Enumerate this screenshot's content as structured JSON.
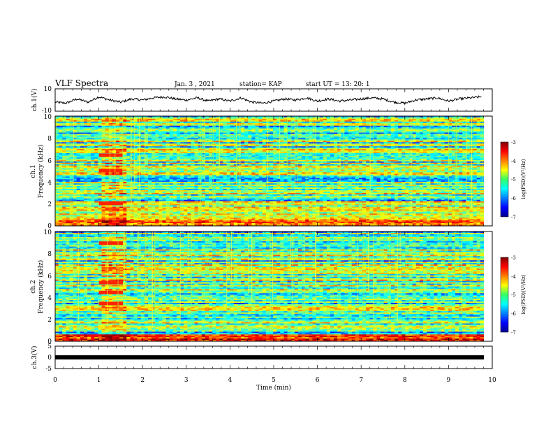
{
  "header": {
    "title": "VLF Spectra",
    "date": "Jan. 3 , 2021",
    "station": "station= KAP",
    "start": "start UT = 13: 20: 1"
  },
  "chart_data": [
    {
      "name": "ch1-waveform",
      "type": "line",
      "ylabel": "ch.1(V)",
      "ylim": [
        -10,
        10
      ],
      "yticks": [
        "10",
        "-10"
      ],
      "x": [
        0,
        0.25,
        0.5,
        0.75,
        1,
        1.25,
        1.5,
        1.75,
        2,
        2.25,
        2.5,
        2.75,
        3,
        3.25,
        3.5,
        3.75,
        4,
        4.25,
        4.5,
        4.75,
        5,
        5.25,
        5.5,
        5.75,
        6,
        6.25,
        6.5,
        6.75,
        7,
        7.25,
        7.5,
        7.75,
        8,
        8.25,
        8.5,
        8.75,
        9,
        9.25,
        9.5,
        9.75
      ],
      "y": [
        -2,
        -3,
        1,
        -2,
        3,
        0,
        -2,
        1,
        0,
        2,
        3,
        1,
        0,
        2,
        -1,
        1,
        -1,
        2,
        -2,
        -3,
        -1,
        1,
        0,
        2,
        -1,
        1,
        -1,
        0,
        1,
        2,
        1,
        -2,
        -3,
        0,
        1,
        2,
        -1,
        1,
        2,
        3
      ]
    },
    {
      "name": "ch1-spectrogram",
      "type": "heatmap",
      "ylabel_top": "ch.1",
      "ylabel": "Frequency (kHz)",
      "ylim": [
        0,
        10
      ],
      "yticks": [
        "0",
        "2",
        "4",
        "6",
        "8",
        "10"
      ],
      "colorbar": {
        "range": [
          -7,
          -3
        ],
        "ticks": [
          "-3",
          "-4",
          "-5",
          "-6",
          "-7"
        ],
        "label": "log(PSD)(V²/Hz)"
      }
    },
    {
      "name": "ch2-spectrogram",
      "type": "heatmap",
      "ylabel_top": "ch.2",
      "ylabel": "Frequency (kHz)",
      "ylim": [
        0,
        10
      ],
      "yticks": [
        "0",
        "2",
        "4",
        "6",
        "8",
        "10"
      ],
      "colorbar": {
        "range": [
          -7,
          -3
        ],
        "ticks": [
          "-3",
          "-4",
          "-5",
          "-6",
          "-7"
        ],
        "label": "log(PSD)(V²/Hz)"
      }
    },
    {
      "name": "ch3-waveform",
      "type": "line",
      "ylabel": "ch.3(V)",
      "ylim": [
        -5,
        5
      ],
      "yticks": [
        "5",
        "0",
        "-5"
      ],
      "x": [
        0,
        9.85
      ],
      "y": [
        0,
        0
      ]
    }
  ],
  "xaxis": {
    "label": "Time (min)",
    "range": [
      0,
      10
    ],
    "ticks": [
      "0",
      "1",
      "2",
      "3",
      "4",
      "5",
      "6",
      "7",
      "8",
      "9",
      "10"
    ]
  }
}
